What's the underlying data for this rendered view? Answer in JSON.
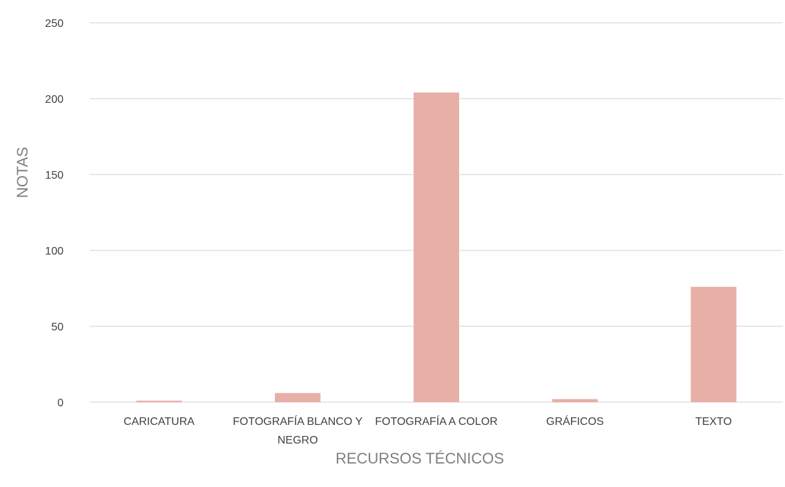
{
  "chart_data": {
    "type": "bar",
    "title": "",
    "xlabel": "RECURSOS TÉCNICOS",
    "ylabel": "NOTAS",
    "categories": [
      [
        "CARICATURA"
      ],
      [
        "FOTOGRAFÍA BLANCO Y",
        "NEGRO"
      ],
      [
        "FOTOGRAFÍA A COLOR"
      ],
      [
        "GRÁFICOS"
      ],
      [
        "TEXTO"
      ]
    ],
    "series": [
      {
        "values": [
          1,
          6,
          204,
          2,
          76
        ],
        "color": "#e8afa6"
      }
    ],
    "ylim": [
      0,
      250
    ],
    "yticks": [
      0,
      50,
      100,
      150,
      200,
      250
    ],
    "grid": true,
    "legend": "none"
  }
}
